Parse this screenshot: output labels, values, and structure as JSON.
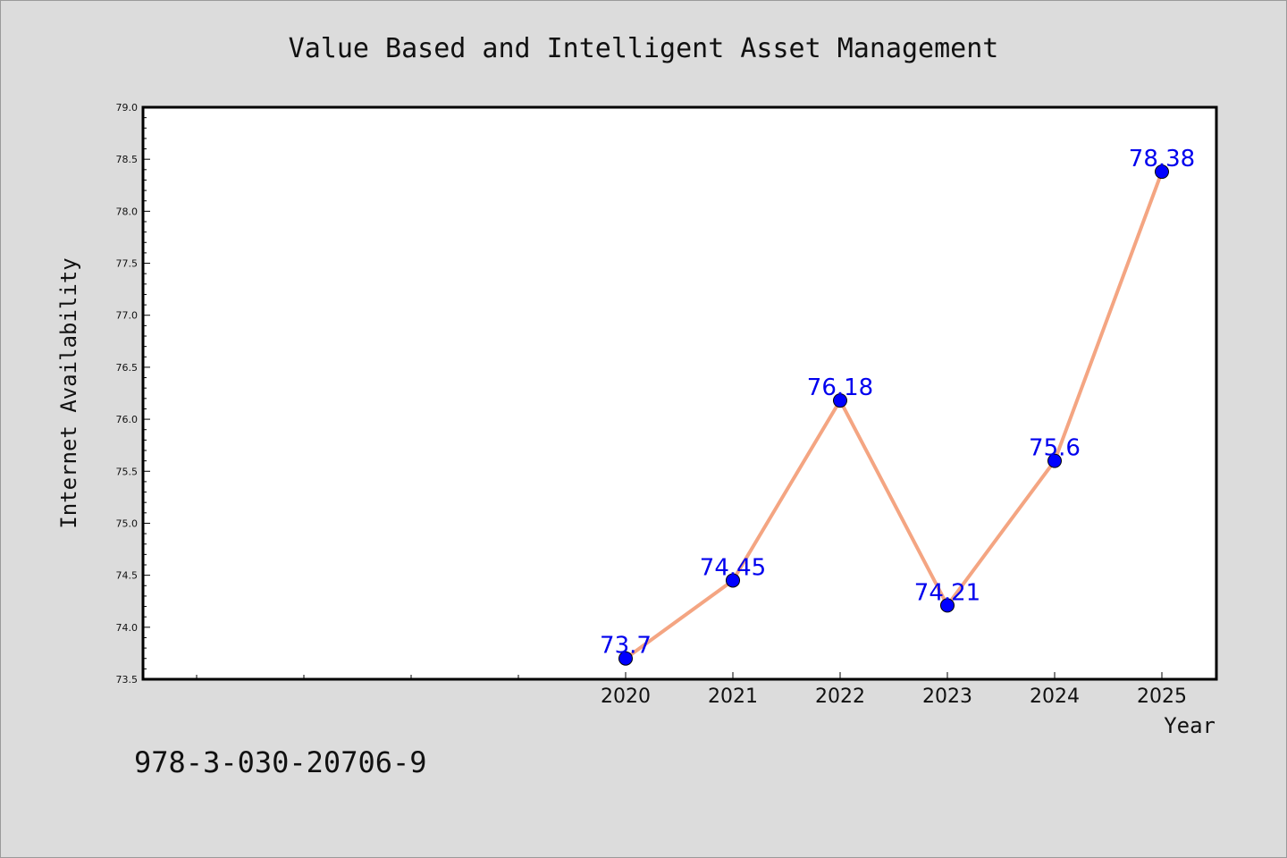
{
  "chart_data": {
    "type": "line",
    "title": "Value Based and Intelligent Asset Management",
    "xlabel": "Year",
    "ylabel": "Internet Availability",
    "categories": [
      "2020",
      "2021",
      "2022",
      "2023",
      "2024",
      "2025"
    ],
    "values": [
      73.7,
      74.45,
      76.18,
      74.21,
      75.6,
      78.38
    ],
    "data_labels": [
      "73.7",
      "74.45",
      "76.18",
      "74.21",
      "75.6",
      "78.38"
    ],
    "ylim": [
      73.5,
      79.0
    ],
    "yticks": [
      "73.5",
      "74.0",
      "74.5",
      "75.0",
      "75.5",
      "76.0",
      "76.5",
      "77.0",
      "77.5",
      "78.0",
      "78.5",
      "79.0"
    ],
    "grid": false,
    "line_color": "#f4a582",
    "marker_color": "#0000ff",
    "label_color": "#0000ee"
  },
  "footer": {
    "isbn": "978-3-030-20706-9"
  }
}
